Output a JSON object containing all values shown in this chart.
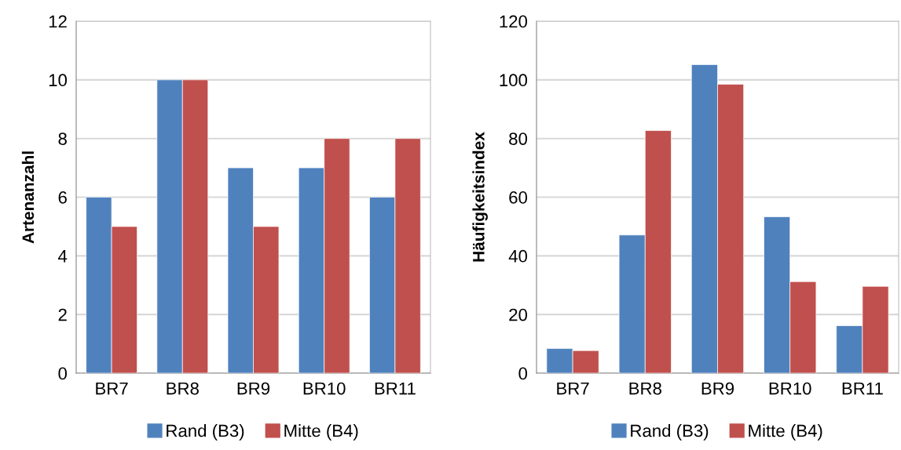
{
  "chart_data": [
    {
      "type": "bar",
      "ylabel": "Artenanzahl",
      "categories": [
        "BR7",
        "BR8",
        "BR9",
        "BR10",
        "BR11"
      ],
      "series": [
        {
          "name": "Rand (B3)",
          "color": "#4f81bd",
          "values": [
            6,
            10,
            7,
            7,
            6
          ]
        },
        {
          "name": "Mitte (B4)",
          "color": "#c0504d",
          "values": [
            5,
            10,
            5,
            8,
            8
          ]
        }
      ],
      "ylim": [
        0,
        12
      ],
      "yticks": [
        0,
        2,
        4,
        6,
        8,
        10,
        12
      ],
      "grid": "y",
      "legend": "bottom"
    },
    {
      "type": "bar",
      "ylabel": "Häufigkeitsindex",
      "categories": [
        "BR7",
        "BR8",
        "BR9",
        "BR10",
        "BR11"
      ],
      "series": [
        {
          "name": "Rand (B3)",
          "color": "#4f81bd",
          "values": [
            8.4,
            47.1,
            105.2,
            53.3,
            16.2
          ]
        },
        {
          "name": "Mitte (B4)",
          "color": "#c0504d",
          "values": [
            7.7,
            82.7,
            98.5,
            31.2,
            29.6
          ]
        }
      ],
      "ylim": [
        0,
        120
      ],
      "yticks": [
        0,
        20,
        40,
        60,
        80,
        100,
        120
      ],
      "grid": "y",
      "legend": "bottom"
    }
  ]
}
